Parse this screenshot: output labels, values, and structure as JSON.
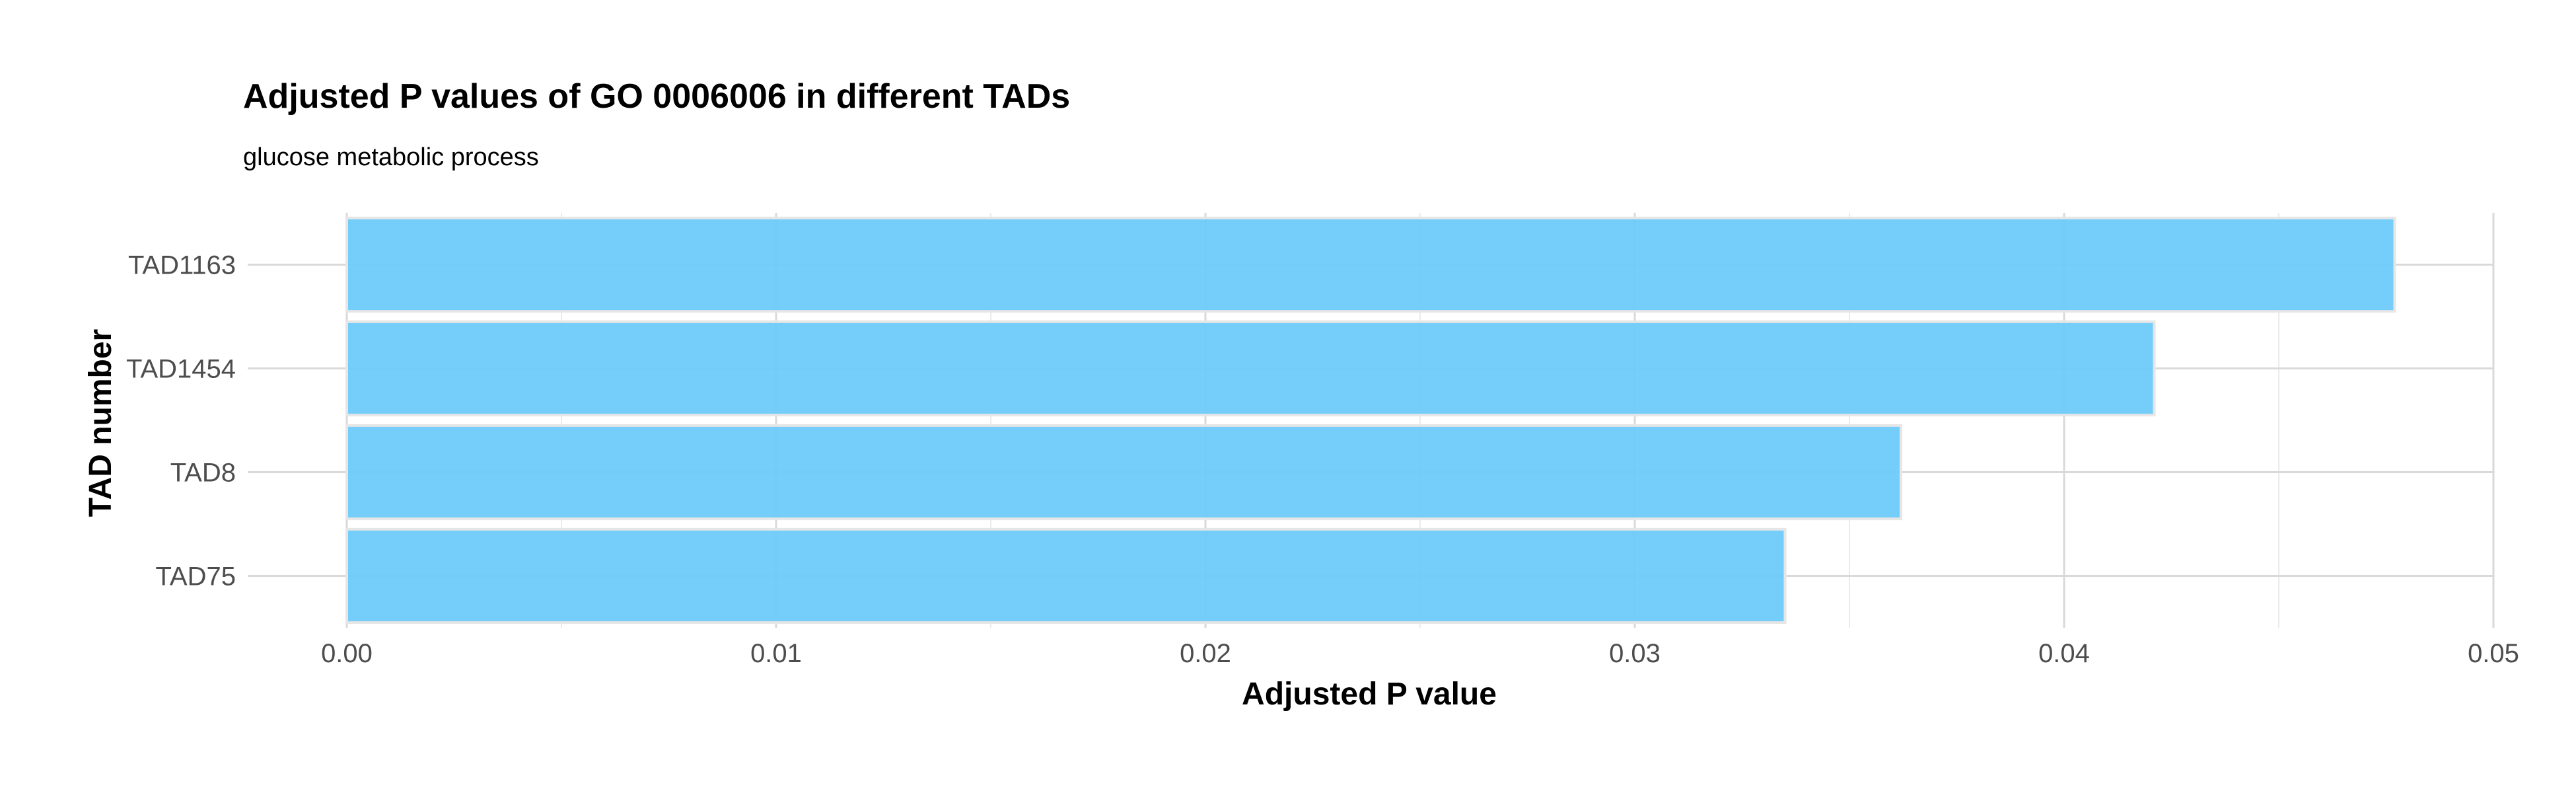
{
  "chart_data": {
    "type": "bar",
    "orientation": "horizontal",
    "title": "Adjusted P values of GO 0006006 in different TADs",
    "subtitle": "glucose metabolic process",
    "xlabel": "Adjusted P value",
    "ylabel": "TAD number",
    "categories": [
      "TAD1163",
      "TAD1454",
      "TAD8",
      "TAD75"
    ],
    "values": [
      0.0477,
      0.0421,
      0.0362,
      0.0335
    ],
    "xlim": [
      0,
      0.05
    ],
    "x_ticks": [
      "0.00",
      "0.01",
      "0.02",
      "0.03",
      "0.04",
      "0.05"
    ],
    "grid": true,
    "legend": "none",
    "colors": {
      "bar_fill": "#6ecbfa",
      "bar_stroke": "#e6e6e6",
      "grid_major": "#d9d9d9",
      "grid_minor": "#ebebeb"
    }
  }
}
